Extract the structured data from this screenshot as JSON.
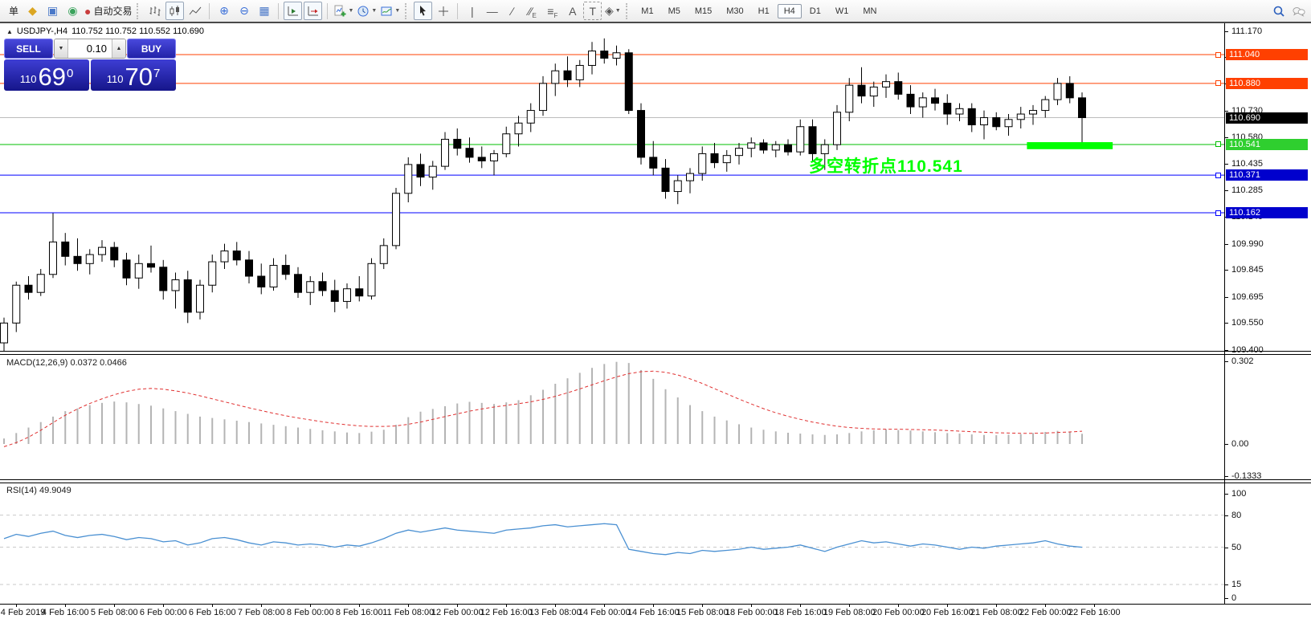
{
  "toolbar": {
    "items": [
      {
        "type": "label",
        "name": "new-order-button",
        "text": "单"
      },
      {
        "type": "icon",
        "name": "metaeditor-icon",
        "glyph": "◆",
        "color": "#dba622"
      },
      {
        "type": "icon",
        "name": "terminal-icon",
        "glyph": "▣",
        "color": "#4a78c8"
      },
      {
        "type": "icon",
        "name": "signals-icon",
        "glyph": "◉",
        "color": "#3aa35c"
      },
      {
        "type": "icon",
        "name": "autotrading-icon",
        "glyph": "●",
        "color": "#c83c3c",
        "label": "自动交易"
      },
      {
        "type": "grip"
      },
      {
        "type": "icon",
        "name": "bar-chart-icon",
        "svg": "bars"
      },
      {
        "type": "icon",
        "name": "candlestick-chart-icon",
        "svg": "candles",
        "boxed": true
      },
      {
        "type": "icon",
        "name": "line-chart-icon",
        "svg": "line"
      },
      {
        "type": "sep"
      },
      {
        "type": "icon",
        "name": "zoom-in-icon",
        "glyph": "⊕",
        "color": "#3a6fd8"
      },
      {
        "type": "icon",
        "name": "zoom-out-icon",
        "glyph": "⊖",
        "color": "#3a6fd8"
      },
      {
        "type": "icon",
        "name": "tile-windows-icon",
        "glyph": "▦",
        "color": "#4a78c8"
      },
      {
        "type": "sep"
      },
      {
        "type": "icon",
        "name": "auto-scroll-icon",
        "svg": "autoscroll",
        "boxed": true
      },
      {
        "type": "icon",
        "name": "chart-shift-icon",
        "svg": "shift",
        "boxed": true
      },
      {
        "type": "sep"
      },
      {
        "type": "icon",
        "name": "indicators-icon",
        "svg": "indicator",
        "dropdown": true
      },
      {
        "type": "icon",
        "name": "periods-icon",
        "svg": "clock",
        "dropdown": true
      },
      {
        "type": "icon",
        "name": "templates-icon",
        "svg": "template",
        "dropdown": true
      },
      {
        "type": "grip"
      },
      {
        "type": "icon",
        "name": "cursor-icon",
        "svg": "cursor",
        "boxed": true
      },
      {
        "type": "icon",
        "name": "crosshair-icon",
        "svg": "crosshair"
      },
      {
        "type": "sep"
      },
      {
        "type": "icon",
        "name": "vertical-line-icon",
        "glyph": "|"
      },
      {
        "type": "icon",
        "name": "horizontal-line-icon",
        "glyph": "—"
      },
      {
        "type": "icon",
        "name": "trendline-icon",
        "glyph": "∕"
      },
      {
        "type": "icon",
        "name": "equidistant-channel-icon",
        "glyph": "∕∕",
        "sub": "E"
      },
      {
        "type": "icon",
        "name": "fibonacci-icon",
        "glyph": "≡",
        "sub": "F"
      },
      {
        "type": "icon",
        "name": "text-icon",
        "glyph": "A"
      },
      {
        "type": "icon",
        "name": "text-label-icon",
        "glyph": "T",
        "dashedbox": true
      },
      {
        "type": "icon",
        "name": "arrows-icon",
        "glyph": "◈",
        "dropdown": true
      },
      {
        "type": "grip"
      },
      {
        "type": "timeframes"
      },
      {
        "type": "spacer"
      },
      {
        "type": "icon",
        "name": "search-icon",
        "svg": "magnifier"
      },
      {
        "type": "icon",
        "name": "chat-icon",
        "svg": "chat"
      }
    ],
    "timeframes": {
      "options": [
        "M1",
        "M5",
        "M15",
        "M30",
        "H1",
        "H4",
        "D1",
        "W1",
        "MN"
      ],
      "active": "H4"
    }
  },
  "chart_header": {
    "collapse_icon": "▲",
    "symbol": "USDJPY-,H4",
    "ohlc": "110.752 110.752 110.552 110.690"
  },
  "quote_panel": {
    "sell_label": "SELL",
    "buy_label": "BUY",
    "volume": "0.10",
    "sell_price": {
      "prefix": "110",
      "big": "69",
      "sup": "0"
    },
    "buy_price": {
      "prefix": "110",
      "big": "70",
      "sup": "7"
    }
  },
  "annotation": {
    "text": "多空转折点110.541",
    "color": "#00ff00"
  },
  "chart_data": {
    "type": "candlestick",
    "symbol": "USDJPY",
    "period": "H4",
    "x_labels": [
      "4 Feb 2019",
      "4 Feb 16:00",
      "5 Feb 08:00",
      "6 Feb 00:00",
      "6 Feb 16:00",
      "7 Feb 08:00",
      "8 Feb 00:00",
      "8 Feb 16:00",
      "11 Feb 08:00",
      "12 Feb 00:00",
      "12 Feb 16:00",
      "13 Feb 08:00",
      "14 Feb 00:00",
      "14 Feb 16:00",
      "15 Feb 08:00",
      "18 Feb 00:00",
      "18 Feb 16:00",
      "19 Feb 08:00",
      "20 Feb 00:00",
      "20 Feb 16:00",
      "21 Feb 08:00",
      "22 Feb 00:00",
      "22 Feb 16:00"
    ],
    "main": {
      "y_ticks": [
        "111.170",
        "111.025",
        "110.880",
        "110.730",
        "110.580",
        "110.435",
        "110.285",
        "110.140",
        "109.990",
        "109.845",
        "109.695",
        "109.550",
        "109.400"
      ],
      "levels": [
        {
          "label": "111.040",
          "price": 111.04,
          "color": "#ff4000",
          "tag_bg": "#ff4000",
          "handle": true
        },
        {
          "label": "110.880",
          "price": 110.88,
          "color": "#ff4000",
          "tag_bg": "#ff4000",
          "handle": true
        },
        {
          "label": "110.690",
          "price": 110.69,
          "color": "#bcbcbc",
          "tag_bg": "#000000",
          "handle": false
        },
        {
          "label": "110.541",
          "price": 110.541,
          "color": "#00bf00",
          "tag_bg": "#2fcf2f",
          "handle": true
        },
        {
          "label": "110.371",
          "price": 110.371,
          "color": "#0000ff",
          "tag_bg": "#0000cd",
          "handle": true
        },
        {
          "label": "110.162",
          "price": 110.162,
          "color": "#0000ff",
          "tag_bg": "#0000cd",
          "handle": true
        }
      ],
      "highlight_bar": {
        "from_index": 83.5,
        "to_index": 90.5,
        "price_top": 110.554,
        "price_bottom": 110.515,
        "color": "#00ff00"
      },
      "candles": [
        [
          109.44,
          109.58,
          109.36,
          109.55
        ],
        [
          109.55,
          109.78,
          109.5,
          109.76
        ],
        [
          109.76,
          109.81,
          109.68,
          109.72
        ],
        [
          109.72,
          109.85,
          109.7,
          109.82
        ],
        [
          109.82,
          110.16,
          109.8,
          110.0
        ],
        [
          110.0,
          110.05,
          109.87,
          109.92
        ],
        [
          109.92,
          110.02,
          109.84,
          109.88
        ],
        [
          109.88,
          109.96,
          109.82,
          109.93
        ],
        [
          109.93,
          110.01,
          109.89,
          109.97
        ],
        [
          109.97,
          110.0,
          109.86,
          109.9
        ],
        [
          109.9,
          109.94,
          109.76,
          109.8
        ],
        [
          109.8,
          109.93,
          109.74,
          109.88
        ],
        [
          109.88,
          109.98,
          109.83,
          109.86
        ],
        [
          109.86,
          109.9,
          109.68,
          109.73
        ],
        [
          109.73,
          109.83,
          109.63,
          109.79
        ],
        [
          109.79,
          109.84,
          109.55,
          109.61
        ],
        [
          109.61,
          109.79,
          109.57,
          109.76
        ],
        [
          109.76,
          109.93,
          109.72,
          109.89
        ],
        [
          109.89,
          109.99,
          109.85,
          109.95
        ],
        [
          109.95,
          110.0,
          109.87,
          109.9
        ],
        [
          109.9,
          109.95,
          109.77,
          109.81
        ],
        [
          109.81,
          109.88,
          109.71,
          109.75
        ],
        [
          109.75,
          109.91,
          109.73,
          109.87
        ],
        [
          109.87,
          109.93,
          109.79,
          109.82
        ],
        [
          109.82,
          109.86,
          109.69,
          109.72
        ],
        [
          109.72,
          109.81,
          109.65,
          109.78
        ],
        [
          109.78,
          109.83,
          109.7,
          109.73
        ],
        [
          109.73,
          109.79,
          109.61,
          109.67
        ],
        [
          109.67,
          109.77,
          109.63,
          109.74
        ],
        [
          109.74,
          109.81,
          109.67,
          109.7
        ],
        [
          109.7,
          109.91,
          109.68,
          109.88
        ],
        [
          109.88,
          110.02,
          109.85,
          109.98
        ],
        [
          109.98,
          110.3,
          109.96,
          110.27
        ],
        [
          110.27,
          110.47,
          110.22,
          110.43
        ],
        [
          110.43,
          110.49,
          110.31,
          110.36
        ],
        [
          110.36,
          110.45,
          110.29,
          110.42
        ],
        [
          110.42,
          110.61,
          110.4,
          110.57
        ],
        [
          110.57,
          110.63,
          110.48,
          110.52
        ],
        [
          110.52,
          110.58,
          110.44,
          110.47
        ],
        [
          110.47,
          110.53,
          110.41,
          110.45
        ],
        [
          110.45,
          110.51,
          110.37,
          110.49
        ],
        [
          110.49,
          110.64,
          110.47,
          110.6
        ],
        [
          110.6,
          110.7,
          110.53,
          110.66
        ],
        [
          110.66,
          110.77,
          110.61,
          110.73
        ],
        [
          110.73,
          110.92,
          110.7,
          110.88
        ],
        [
          110.88,
          110.99,
          110.81,
          110.95
        ],
        [
          110.95,
          111.03,
          110.86,
          110.9
        ],
        [
          110.9,
          111.01,
          110.86,
          110.98
        ],
        [
          110.98,
          111.11,
          110.93,
          111.06
        ],
        [
          111.06,
          111.13,
          110.99,
          111.02
        ],
        [
          111.02,
          111.09,
          110.98,
          111.05
        ],
        [
          111.05,
          111.07,
          110.71,
          110.73
        ],
        [
          110.73,
          110.77,
          110.43,
          110.47
        ],
        [
          110.47,
          110.56,
          110.37,
          110.41
        ],
        [
          110.41,
          110.46,
          110.24,
          110.28
        ],
        [
          110.28,
          110.37,
          110.21,
          110.34
        ],
        [
          110.34,
          110.41,
          110.27,
          110.38
        ],
        [
          110.38,
          110.53,
          110.34,
          110.49
        ],
        [
          110.49,
          110.55,
          110.41,
          110.44
        ],
        [
          110.44,
          110.51,
          110.39,
          110.48
        ],
        [
          110.48,
          110.55,
          110.43,
          110.52
        ],
        [
          110.52,
          110.58,
          110.47,
          110.55
        ],
        [
          110.55,
          110.57,
          110.49,
          110.51
        ],
        [
          110.51,
          110.56,
          110.47,
          110.54
        ],
        [
          110.54,
          110.57,
          110.48,
          110.5
        ],
        [
          110.5,
          110.68,
          110.48,
          110.64
        ],
        [
          110.64,
          110.68,
          110.45,
          110.49
        ],
        [
          110.49,
          110.57,
          110.4,
          110.54
        ],
        [
          110.54,
          110.76,
          110.51,
          110.72
        ],
        [
          110.72,
          110.91,
          110.67,
          110.87
        ],
        [
          110.87,
          110.97,
          110.77,
          110.81
        ],
        [
          110.81,
          110.89,
          110.75,
          110.86
        ],
        [
          110.86,
          110.93,
          110.8,
          110.89
        ],
        [
          110.89,
          110.94,
          110.79,
          110.82
        ],
        [
          110.82,
          110.87,
          110.71,
          110.75
        ],
        [
          110.75,
          110.83,
          110.69,
          110.8
        ],
        [
          110.8,
          110.85,
          110.73,
          110.77
        ],
        [
          110.77,
          110.82,
          110.65,
          110.71
        ],
        [
          110.71,
          110.77,
          110.67,
          110.74
        ],
        [
          110.74,
          110.77,
          110.61,
          110.65
        ],
        [
          110.65,
          110.73,
          110.57,
          110.69
        ],
        [
          110.69,
          110.72,
          110.62,
          110.64
        ],
        [
          110.64,
          110.71,
          110.59,
          110.68
        ],
        [
          110.68,
          110.75,
          110.63,
          110.71
        ],
        [
          110.71,
          110.76,
          110.65,
          110.73
        ],
        [
          110.73,
          110.81,
          110.69,
          110.79
        ],
        [
          110.79,
          110.91,
          110.76,
          110.88
        ],
        [
          110.88,
          110.92,
          110.77,
          110.8
        ],
        [
          110.8,
          110.83,
          110.54,
          110.69
        ]
      ]
    },
    "macd": {
      "label": "MACD(12,26,9)",
      "values_text": "0.0372 0.0466",
      "y_ticks": [
        "0.302",
        "0.00",
        "-0.1333"
      ],
      "colors": {
        "histogram": "#b4b4b4",
        "signal": "#e03030"
      },
      "histogram": [
        0.02,
        0.04,
        0.06,
        0.08,
        0.1,
        0.12,
        0.13,
        0.142,
        0.15,
        0.155,
        0.152,
        0.146,
        0.14,
        0.13,
        0.12,
        0.11,
        0.1,
        0.095,
        0.09,
        0.085,
        0.08,
        0.075,
        0.07,
        0.065,
        0.06,
        0.055,
        0.05,
        0.046,
        0.042,
        0.04,
        0.045,
        0.052,
        0.07,
        0.098,
        0.118,
        0.128,
        0.138,
        0.148,
        0.154,
        0.15,
        0.146,
        0.152,
        0.16,
        0.178,
        0.198,
        0.22,
        0.24,
        0.26,
        0.278,
        0.292,
        0.3,
        0.296,
        0.27,
        0.238,
        0.2,
        0.17,
        0.142,
        0.12,
        0.1,
        0.086,
        0.072,
        0.06,
        0.052,
        0.046,
        0.041,
        0.038,
        0.035,
        0.033,
        0.035,
        0.04,
        0.046,
        0.05,
        0.053,
        0.051,
        0.049,
        0.046,
        0.043,
        0.04,
        0.038,
        0.035,
        0.033,
        0.032,
        0.034,
        0.036,
        0.04,
        0.044,
        0.048,
        0.044,
        0.0372
      ],
      "signal": [
        -0.01,
        0.005,
        0.025,
        0.05,
        0.078,
        0.105,
        0.128,
        0.148,
        0.165,
        0.18,
        0.192,
        0.2,
        0.203,
        0.2,
        0.194,
        0.186,
        0.176,
        0.165,
        0.154,
        0.143,
        0.132,
        0.122,
        0.112,
        0.103,
        0.095,
        0.088,
        0.081,
        0.075,
        0.07,
        0.066,
        0.064,
        0.064,
        0.066,
        0.072,
        0.08,
        0.09,
        0.1,
        0.11,
        0.12,
        0.128,
        0.135,
        0.141,
        0.147,
        0.154,
        0.163,
        0.174,
        0.187,
        0.201,
        0.216,
        0.231,
        0.245,
        0.257,
        0.264,
        0.266,
        0.262,
        0.252,
        0.238,
        0.221,
        0.202,
        0.183,
        0.164,
        0.146,
        0.129,
        0.114,
        0.101,
        0.09,
        0.08,
        0.072,
        0.065,
        0.06,
        0.057,
        0.055,
        0.054,
        0.054,
        0.053,
        0.052,
        0.051,
        0.049,
        0.047,
        0.045,
        0.043,
        0.041,
        0.04,
        0.039,
        0.039,
        0.04,
        0.042,
        0.044,
        0.0466
      ]
    },
    "rsi": {
      "label": "RSI(14)",
      "value_text": "49.9049",
      "y_ticks": [
        "100",
        "80",
        "50",
        "15",
        "0"
      ],
      "levels": [
        80,
        50,
        15
      ],
      "color": "#4a90d2",
      "values": [
        58,
        62,
        60,
        63,
        65,
        61,
        59,
        61,
        62,
        60,
        57,
        59,
        58,
        55,
        56,
        52,
        54,
        58,
        59,
        57,
        54,
        52,
        55,
        54,
        52,
        53,
        52,
        50,
        52,
        51,
        54,
        58,
        63,
        66,
        64,
        66,
        68,
        66,
        65,
        64,
        63,
        66,
        67,
        68,
        70,
        71,
        69,
        70,
        71,
        72,
        71,
        48,
        46,
        44,
        43,
        45,
        44,
        47,
        46,
        47,
        48,
        50,
        48,
        49,
        50,
        52,
        49,
        46,
        50,
        53,
        56,
        54,
        55,
        53,
        51,
        53,
        52,
        50,
        48,
        50,
        49,
        51,
        52,
        53,
        54,
        56,
        53,
        51,
        49.9
      ]
    }
  }
}
